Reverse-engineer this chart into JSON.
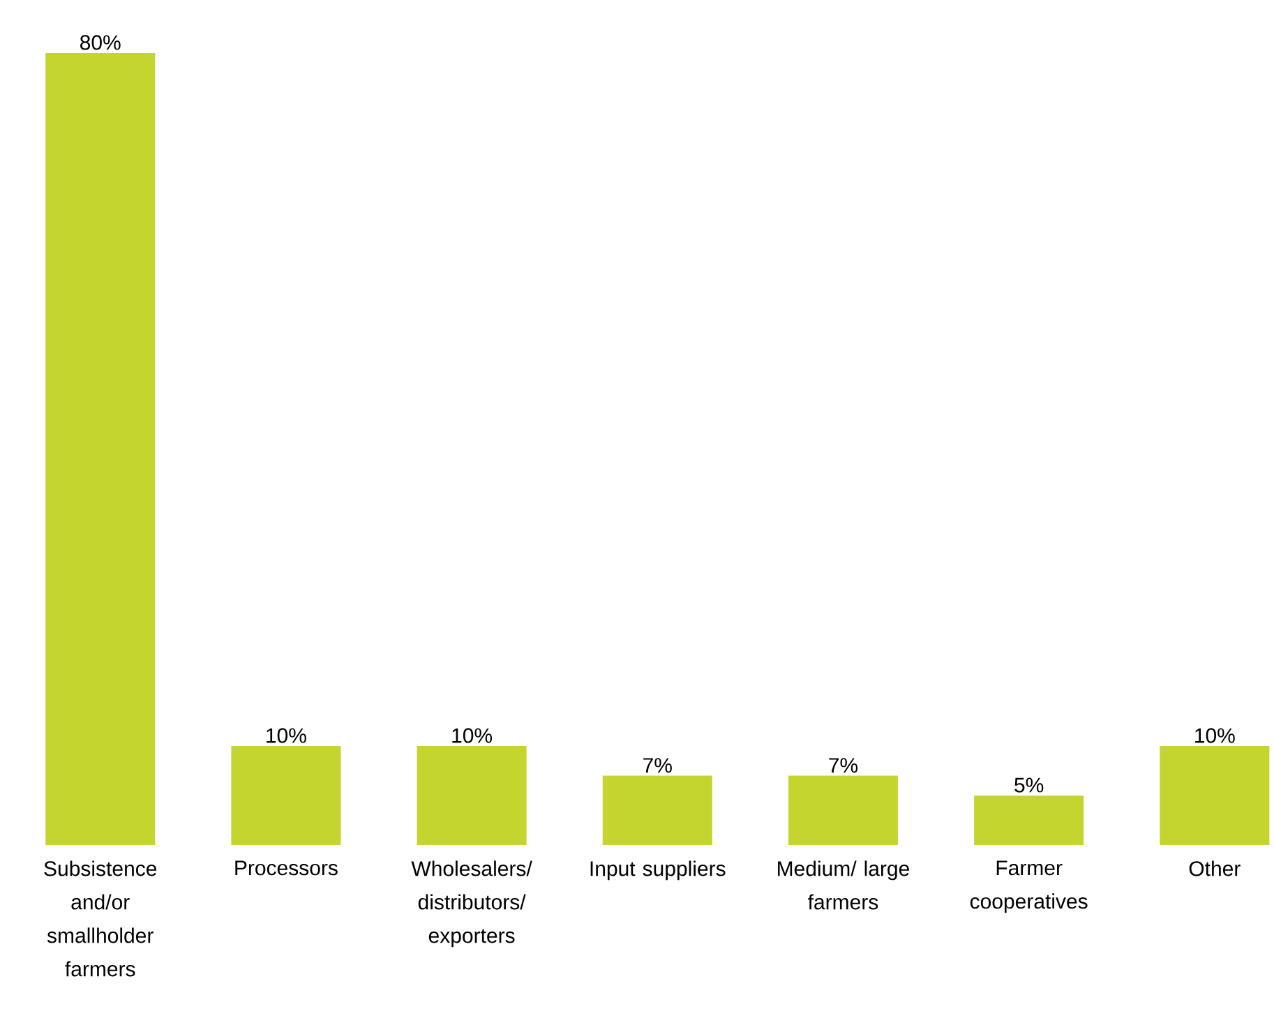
{
  "chart_data": {
    "type": "bar",
    "categories": [
      "Subsistence and/or smallholder farmers",
      "Processors",
      "Wholesalers/ distributors/ exporters",
      "Input suppliers",
      "Medium/ large farmers",
      "Farmer cooperatives",
      "Other"
    ],
    "values": [
      80,
      10,
      10,
      7,
      7,
      5,
      10
    ],
    "value_labels": [
      "80%",
      "10%",
      "10%",
      "7%",
      "7%",
      "5%",
      "10%"
    ],
    "color": "#c4d52f"
  }
}
